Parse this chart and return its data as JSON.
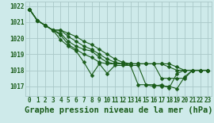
{
  "title": "Graphe pression niveau de la mer (hPa)",
  "background_color": "#ceeaea",
  "grid_color": "#aac8c8",
  "line_color": "#1a5c1a",
  "marker_color": "#1a5c1a",
  "xlim": [
    -0.5,
    23.5
  ],
  "ylim": [
    1016.4,
    1022.3
  ],
  "yticks": [
    1017,
    1018,
    1019,
    1020,
    1021,
    1022
  ],
  "xticks": [
    0,
    1,
    2,
    3,
    4,
    5,
    6,
    7,
    8,
    9,
    10,
    11,
    12,
    13,
    14,
    15,
    16,
    17,
    18,
    19,
    20,
    21,
    22,
    23
  ],
  "lines": [
    [
      1021.8,
      1021.1,
      1020.8,
      1020.5,
      1019.9,
      1019.5,
      1019.2,
      1018.5,
      1017.7,
      1018.4,
      1017.8,
      1018.3,
      1018.3,
      1018.3,
      1017.1,
      1017.1,
      1017.0,
      1017.1,
      1016.9,
      1017.8,
      1018.0,
      1018.0,
      1018.0,
      1018.0
    ],
    [
      1021.8,
      1021.1,
      1020.8,
      1020.5,
      1020.2,
      1019.6,
      1019.3,
      1019.0,
      1018.8,
      1018.5,
      1018.4,
      1018.4,
      1018.4,
      1018.3,
      1018.3,
      1017.1,
      1017.1,
      1017.0,
      1017.0,
      1016.85,
      1017.6,
      1018.0,
      1018.0,
      1018.0
    ],
    [
      1021.8,
      1021.1,
      1020.8,
      1020.5,
      1020.3,
      1019.8,
      1019.5,
      1019.3,
      1019.2,
      1018.8,
      1018.5,
      1018.4,
      1018.4,
      1018.4,
      1018.4,
      1018.4,
      1018.4,
      1017.5,
      1017.5,
      1017.5,
      1017.5,
      1018.0,
      1018.0,
      1018.0
    ],
    [
      1021.8,
      1021.1,
      1020.8,
      1020.5,
      1020.5,
      1020.1,
      1019.8,
      1019.5,
      1019.3,
      1019.0,
      1018.7,
      1018.5,
      1018.4,
      1018.4,
      1018.4,
      1018.4,
      1018.4,
      1018.4,
      1018.2,
      1018.0,
      1018.0,
      1018.0,
      1018.0,
      1018.0
    ],
    [
      1021.8,
      1021.1,
      1020.8,
      1020.5,
      1020.5,
      1020.3,
      1020.1,
      1019.8,
      1019.6,
      1019.3,
      1019.0,
      1018.7,
      1018.5,
      1018.4,
      1018.4,
      1018.4,
      1018.4,
      1018.4,
      1018.4,
      1018.2,
      1018.0,
      1018.0,
      1018.0,
      1018.0
    ]
  ],
  "marker_size": 2.5,
  "linewidth": 0.8,
  "title_fontsize": 7.5,
  "tick_fontsize": 5.5
}
